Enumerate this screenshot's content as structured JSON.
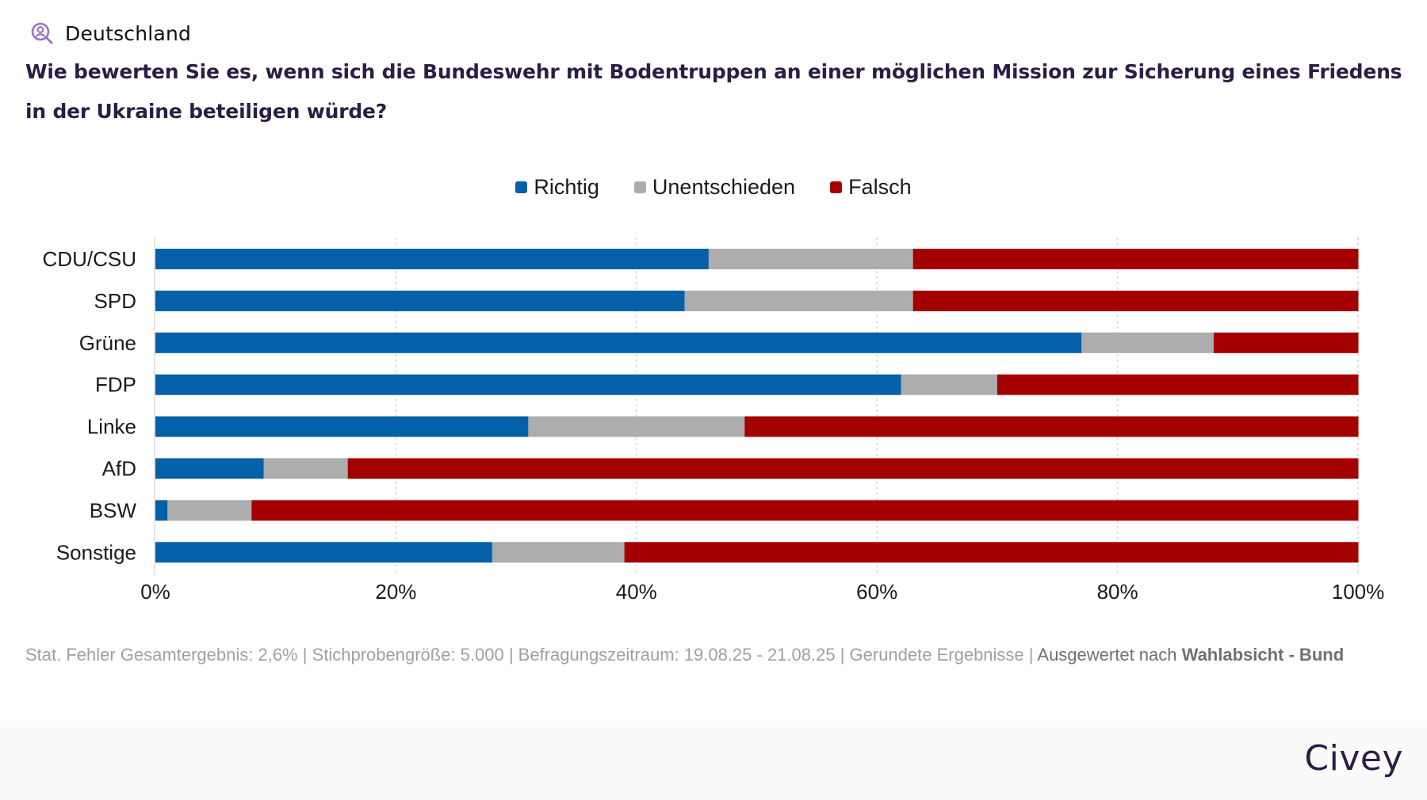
{
  "header": {
    "region_icon": "person-search-icon",
    "region_label": "Deutschland",
    "question": "Wie bewerten Sie es, wenn sich die Bundeswehr mit Bodentruppen an einer möglichen Mission zur Sicherung eines Friedens in der Ukraine beteiligen würde?"
  },
  "colors": {
    "richtig": "#0460a9",
    "unentschieden": "#adadad",
    "falsch": "#a50000",
    "title": "#2b1d45",
    "icon": "#9b72c4"
  },
  "chart_data": {
    "type": "bar",
    "orientation": "horizontal",
    "stacked": true,
    "title": "Wie bewerten Sie es, wenn sich die Bundeswehr mit Bodentruppen an einer möglichen Mission zur Sicherung eines Friedens in der Ukraine beteiligen würde?",
    "xlabel": "",
    "ylabel": "",
    "categories": [
      "CDU/CSU",
      "SPD",
      "Grüne",
      "FDP",
      "Linke",
      "AfD",
      "BSW",
      "Sonstige"
    ],
    "series": [
      {
        "name": "Richtig",
        "color": "#0460a9",
        "values": [
          46,
          44,
          77,
          62,
          31,
          9,
          1,
          28
        ]
      },
      {
        "name": "Unentschieden",
        "color": "#adadad",
        "values": [
          17,
          19,
          11,
          8,
          18,
          7,
          7,
          11
        ]
      },
      {
        "name": "Falsch",
        "color": "#a50000",
        "values": [
          37,
          37,
          12,
          30,
          51,
          84,
          92,
          61
        ]
      }
    ],
    "xlim": [
      0,
      100
    ],
    "x_ticks": [
      0,
      20,
      40,
      60,
      80,
      100
    ],
    "x_tick_labels": [
      "0%",
      "20%",
      "40%",
      "60%",
      "80%",
      "100%"
    ],
    "grid": "vertical dotted",
    "legend_position": "top-center"
  },
  "footer": {
    "note_prefix": "Stat. Fehler Gesamtergebnis: 2,6% | Stichprobengröße: 5.000 | Befragungszeitraum: 19.08.25 - 21.08.25 | Gerundete Ergebnisse | ",
    "note_eval": "Ausgewertet nach",
    "note_eval_strong": "Wahlabsicht - Bund",
    "brand": "Civey"
  }
}
